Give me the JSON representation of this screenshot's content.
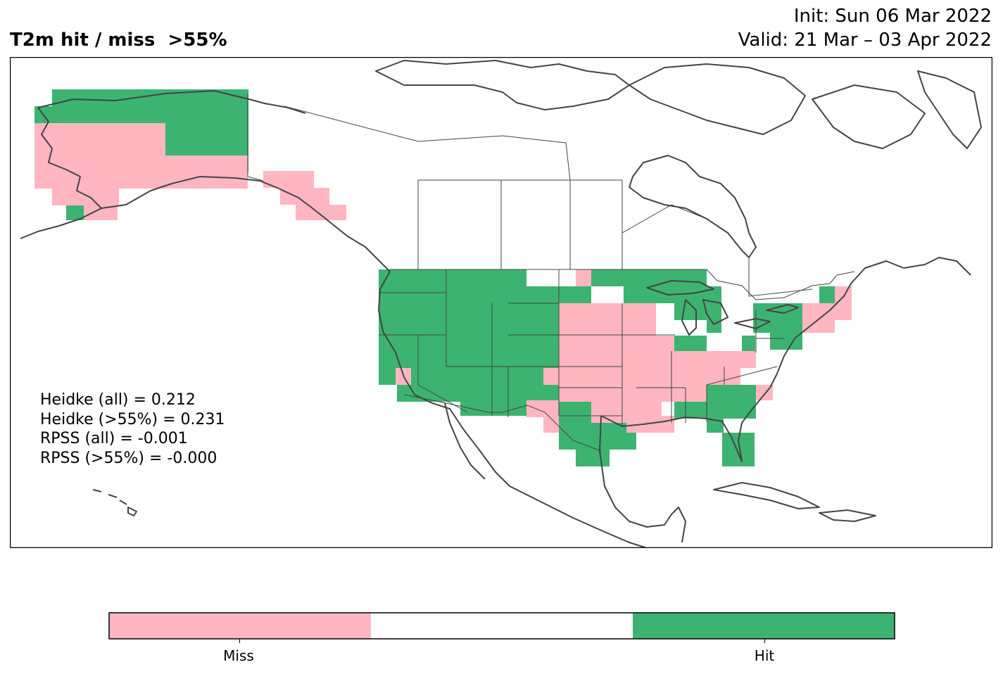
{
  "title": "T2m hit / miss  >55%",
  "init": "Init: Sun 06 Mar 2022",
  "valid": "Valid: 21 Mar – 03 Apr 2022",
  "stats": [
    "Heidke (all) = 0.212",
    "Heidke (>55%) = 0.231",
    "RPSS (all) = -0.001",
    "RPSS (>55%) = -0.000"
  ],
  "legend": {
    "categories": [
      "Miss",
      "",
      "Hit"
    ],
    "miss_label": "Miss",
    "hit_label": "Hit",
    "colors": {
      "miss": "#ffb6c1",
      "neutral": "#ffffff",
      "hit": "#3cb371"
    }
  },
  "colors": {
    "coast": "#444444",
    "border": "#444444",
    "frame": "#000000"
  }
}
